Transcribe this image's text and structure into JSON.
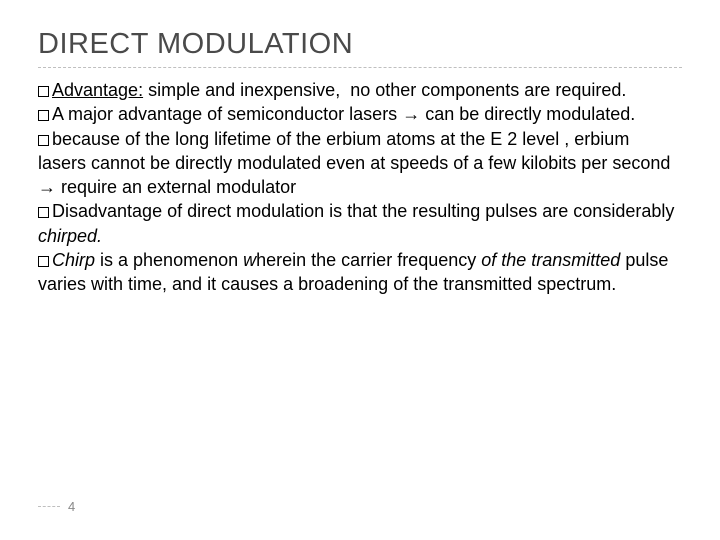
{
  "slide": {
    "title": "DIRECT MODULATION",
    "pageNumber": "4",
    "bullets": [
      {
        "html": "<span class='underline'>Advantage:</span> simple and inexpensive,&nbsp; no other components are required."
      },
      {
        "html": "A major advantage of semiconductor lasers <span class='arrow'>&#8594;</span> can be directly modulated."
      },
      {
        "html": "because of the long lifetime of the erbium atoms at the E 2 level , erbium lasers cannot be directly modulated even at speeds of a few kilobits per second <span class='arrow'>&#8594;</span> require an external modulator"
      },
      {
        "html": "Disadvantage of direct modulation is that the resulting pulses are considerably <span class='italic'>chirped.</span>"
      },
      {
        "html": "<span class='italic'>Chirp</span> is a phenomenon <span class='italic'>w</span>herein the carrier frequency <span class='italic'>of the transmitted</span> pulse varies with time, and it causes a broadening of the transmitted spectrum."
      }
    ]
  },
  "style": {
    "background": "#ffffff",
    "titleColor": "#4a4a4a",
    "titleFontSize": 29,
    "bodyFontSize": 18,
    "bodyColor": "#000000",
    "dividerColor": "#bfbfbf",
    "pageNumColor": "#888888",
    "bulletBoxSize": 11,
    "bulletBorder": "#000000"
  }
}
